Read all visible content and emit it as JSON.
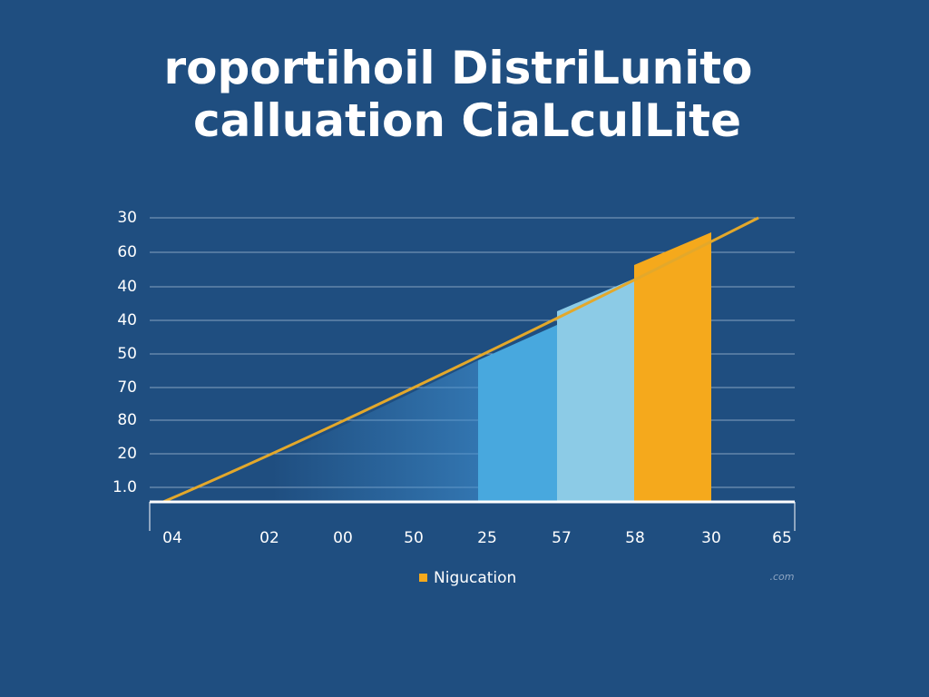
{
  "header": {
    "title_lines": [
      "roportihoil DistriLunito",
      "calluation CiaLculLite"
    ]
  },
  "axis": {
    "y_labels": [
      "30",
      "60",
      "40",
      "40",
      "50",
      "70",
      "80",
      "20",
      "1.0"
    ],
    "x_labels": [
      "04",
      "02",
      "00",
      "50",
      "25",
      "57",
      "58",
      "30",
      "65"
    ]
  },
  "legend": {
    "label": "Nigucation"
  },
  "watermark": ".com"
}
